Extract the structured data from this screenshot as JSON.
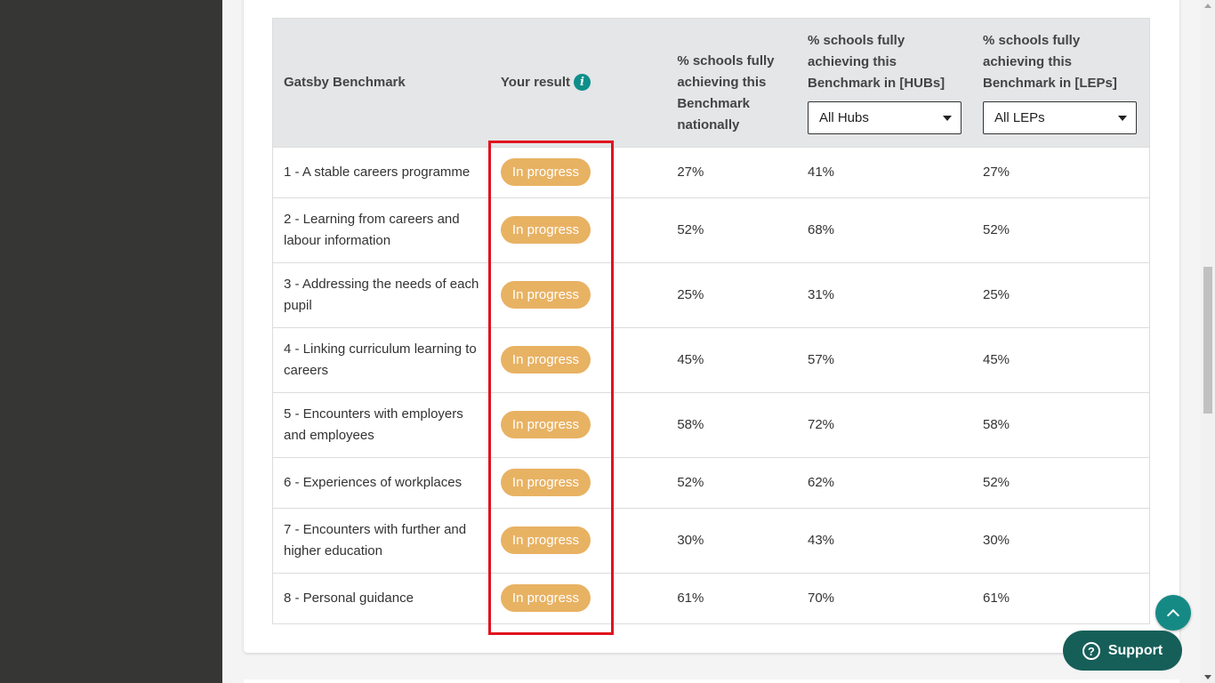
{
  "table": {
    "headers": {
      "benchmark": "Gatsby Benchmark",
      "result": "Your result",
      "national": "% schools fully achieving this Benchmark nationally",
      "hubs": "% schools fully achieving this Benchmark in [HUBs]",
      "leps": "% schools fully achieving this Benchmark in [LEPs]"
    },
    "hubs_select": "All Hubs",
    "leps_select": "All LEPs",
    "rows": [
      {
        "name": "1 - A stable careers programme",
        "result": "In progress",
        "national": "27%",
        "hubs": "41%",
        "leps": "27%"
      },
      {
        "name": "2 - Learning from careers and labour information",
        "result": "In progress",
        "national": "52%",
        "hubs": "68%",
        "leps": "52%"
      },
      {
        "name": "3 - Addressing the needs of each pupil",
        "result": "In progress",
        "national": "25%",
        "hubs": "31%",
        "leps": "25%"
      },
      {
        "name": "4 - Linking curriculum learning to careers",
        "result": "In progress",
        "national": "45%",
        "hubs": "57%",
        "leps": "45%"
      },
      {
        "name": "5 - Encounters with employers and employees",
        "result": "In progress",
        "national": "58%",
        "hubs": "72%",
        "leps": "58%"
      },
      {
        "name": "6 - Experiences of workplaces",
        "result": "In progress",
        "national": "52%",
        "hubs": "62%",
        "leps": "52%"
      },
      {
        "name": "7 - Encounters with further and higher education",
        "result": "In progress",
        "national": "30%",
        "hubs": "43%",
        "leps": "30%"
      },
      {
        "name": "8 - Personal guidance",
        "result": "In progress",
        "national": "61%",
        "hubs": "70%",
        "leps": "61%"
      }
    ]
  },
  "support_label": "Support",
  "colors": {
    "pill": "#e8b263",
    "accent": "#158a85",
    "support_bg": "#165f58",
    "highlight": "#e0141e",
    "sidebar": "#363634"
  },
  "icons": {
    "info": "info-icon",
    "back_to_top": "chevron-up-icon",
    "support": "question-icon"
  }
}
